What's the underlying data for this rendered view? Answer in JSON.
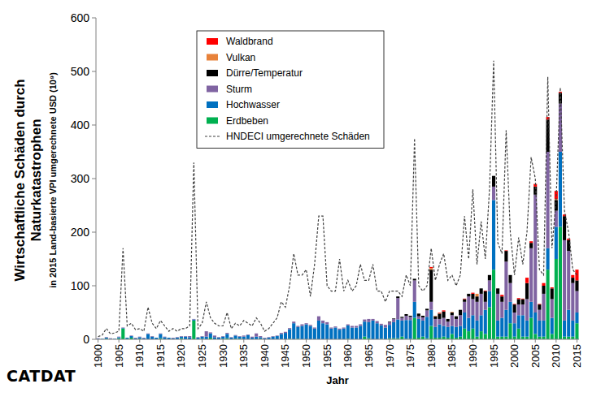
{
  "chart_data": {
    "type": "bar",
    "stacked": true,
    "y_label": [
      "Wirtschaftliche Schäden durch",
      "Naturkatastrophen",
      "in 2015 Land-basierte VPI umgerechnete USD (10⁹)"
    ],
    "x_label": "Jahr",
    "logo": "CATDAT",
    "legend": "top-left",
    "grid": false,
    "x": [
      1900,
      1901,
      1902,
      1903,
      1904,
      1905,
      1906,
      1907,
      1908,
      1909,
      1910,
      1911,
      1912,
      1913,
      1914,
      1915,
      1916,
      1917,
      1918,
      1919,
      1920,
      1921,
      1922,
      1923,
      1924,
      1925,
      1926,
      1927,
      1928,
      1929,
      1930,
      1931,
      1932,
      1933,
      1934,
      1935,
      1936,
      1937,
      1938,
      1939,
      1940,
      1941,
      1942,
      1943,
      1944,
      1945,
      1946,
      1947,
      1948,
      1949,
      1950,
      1951,
      1952,
      1953,
      1954,
      1955,
      1956,
      1957,
      1958,
      1959,
      1960,
      1961,
      1962,
      1963,
      1964,
      1965,
      1966,
      1967,
      1968,
      1969,
      1970,
      1971,
      1972,
      1973,
      1974,
      1975,
      1976,
      1977,
      1978,
      1979,
      1980,
      1981,
      1982,
      1983,
      1984,
      1985,
      1986,
      1987,
      1988,
      1989,
      1990,
      1991,
      1992,
      1993,
      1994,
      1995,
      1996,
      1997,
      1998,
      1999,
      2000,
      2001,
      2002,
      2003,
      2004,
      2005,
      2006,
      2007,
      2008,
      2009,
      2010,
      2011,
      2012,
      2013,
      2014,
      2015
    ],
    "xlim": [
      1899.5,
      2015.5
    ],
    "xticks": [
      1900,
      1905,
      1910,
      1915,
      1920,
      1925,
      1930,
      1935,
      1940,
      1945,
      1950,
      1955,
      1960,
      1965,
      1970,
      1975,
      1980,
      1985,
      1990,
      1995,
      2000,
      2005,
      2010,
      2015
    ],
    "ylim": [
      0,
      600
    ],
    "yticks": [
      0,
      100,
      200,
      300,
      400,
      500,
      600
    ],
    "series": [
      {
        "name": "Erdbeben",
        "color": "#00b050",
        "values": [
          0,
          0,
          1,
          0,
          0,
          2,
          20,
          1,
          3,
          0,
          1,
          0,
          0,
          0,
          0,
          2,
          0,
          0,
          0,
          0,
          2,
          0,
          0,
          35,
          0,
          1,
          0,
          3,
          0,
          0,
          1,
          2,
          0,
          1,
          1,
          0,
          0,
          0,
          0,
          1,
          0,
          0,
          0,
          0,
          0,
          0,
          1,
          0,
          1,
          0,
          0,
          0,
          0,
          0,
          0,
          0,
          0,
          0,
          0,
          0,
          1,
          0,
          0,
          0,
          5,
          2,
          0,
          0,
          1,
          0,
          2,
          2,
          2,
          5,
          1,
          1,
          40,
          3,
          5,
          2,
          25,
          3,
          3,
          5,
          3,
          10,
          3,
          5,
          20,
          15,
          20,
          5,
          15,
          10,
          60,
          130,
          5,
          5,
          5,
          30,
          5,
          20,
          5,
          5,
          40,
          10,
          5,
          5,
          130,
          10,
          150,
          210,
          5,
          5,
          5,
          30
        ]
      },
      {
        "name": "Hochwasser",
        "color": "#0070c0",
        "values": [
          1,
          1,
          2,
          1,
          1,
          2,
          1,
          2,
          3,
          2,
          3,
          2,
          10,
          5,
          3,
          8,
          4,
          3,
          2,
          3,
          3,
          5,
          4,
          2,
          3,
          4,
          5,
          8,
          4,
          3,
          4,
          8,
          3,
          6,
          4,
          5,
          8,
          3,
          5,
          3,
          2,
          3,
          5,
          6,
          10,
          12,
          18,
          30,
          22,
          25,
          28,
          25,
          20,
          35,
          30,
          28,
          20,
          22,
          18,
          20,
          25,
          22,
          22,
          25,
          28,
          30,
          35,
          30,
          25,
          22,
          25,
          30,
          35,
          30,
          35,
          35,
          30,
          35,
          30,
          40,
          30,
          20,
          25,
          20,
          20,
          15,
          20,
          20,
          30,
          25,
          25,
          30,
          30,
          45,
          30,
          130,
          30,
          35,
          50,
          40,
          25,
          25,
          40,
          30,
          30,
          40,
          30,
          30,
          40,
          30,
          60,
          140,
          30,
          50,
          30,
          20
        ]
      },
      {
        "name": "Sturm",
        "color": "#8064a2",
        "values": [
          1,
          0,
          1,
          1,
          0,
          1,
          1,
          0,
          1,
          1,
          1,
          1,
          1,
          1,
          0,
          1,
          1,
          0,
          1,
          1,
          1,
          1,
          2,
          1,
          1,
          1,
          10,
          2,
          3,
          1,
          1,
          2,
          1,
          1,
          1,
          2,
          1,
          2,
          6,
          2,
          1,
          1,
          1,
          1,
          2,
          2,
          2,
          3,
          2,
          3,
          2,
          2,
          2,
          8,
          5,
          4,
          2,
          2,
          2,
          2,
          2,
          3,
          3,
          3,
          4,
          6,
          3,
          4,
          3,
          5,
          5,
          6,
          40,
          5,
          8,
          6,
          40,
          5,
          6,
          12,
          15,
          15,
          10,
          15,
          10,
          20,
          15,
          20,
          20,
          40,
          30,
          35,
          40,
          15,
          20,
          25,
          50,
          30,
          90,
          35,
          20,
          20,
          20,
          40,
          100,
          220,
          20,
          50,
          180,
          35,
          30,
          90,
          150,
          110,
          70,
          40
        ]
      },
      {
        "name": "Dürre/Temperatur",
        "color": "#000000",
        "values": [
          0,
          0,
          0,
          0,
          0,
          0,
          0,
          0,
          0,
          0,
          0,
          0,
          0,
          0,
          0,
          0,
          0,
          0,
          0,
          0,
          0,
          0,
          0,
          0,
          0,
          0,
          0,
          0,
          0,
          0,
          0,
          0,
          0,
          0,
          0,
          0,
          0,
          0,
          0,
          0,
          0,
          0,
          0,
          0,
          0,
          0,
          0,
          0,
          0,
          0,
          0,
          0,
          0,
          0,
          0,
          0,
          0,
          0,
          0,
          0,
          0,
          0,
          0,
          0,
          0,
          0,
          0,
          0,
          0,
          0,
          1,
          1,
          3,
          2,
          3,
          2,
          3,
          5,
          3,
          3,
          60,
          5,
          10,
          12,
          5,
          5,
          5,
          10,
          5,
          5,
          10,
          10,
          10,
          20,
          10,
          20,
          10,
          10,
          20,
          15,
          15,
          10,
          10,
          30,
          10,
          15,
          10,
          15,
          60,
          20,
          20,
          20,
          45,
          20,
          10,
          20
        ]
      },
      {
        "name": "Vulkan",
        "color": "#e8823a",
        "values": [
          0,
          0,
          0,
          0,
          0,
          0,
          0,
          0,
          0,
          0,
          0,
          0,
          0,
          0,
          0,
          0,
          0,
          0,
          0,
          0,
          0,
          0,
          0,
          0,
          0,
          0,
          0,
          0,
          0,
          0,
          0,
          0,
          0,
          0,
          0,
          0,
          0,
          0,
          0,
          0,
          0,
          0,
          0,
          0,
          0,
          0,
          0,
          0,
          0,
          0,
          0,
          0,
          0,
          0,
          0,
          0,
          0,
          0,
          0,
          0,
          0,
          0,
          0,
          0,
          0,
          0,
          0,
          0,
          0,
          0,
          0,
          0,
          0,
          0,
          0,
          0,
          0,
          0,
          0,
          0,
          3,
          1,
          1,
          0,
          0,
          1,
          0,
          0,
          0,
          0,
          0,
          5,
          0,
          0,
          0,
          0,
          0,
          0,
          0,
          0,
          0,
          0,
          0,
          0,
          0,
          0,
          0,
          0,
          0,
          0,
          2,
          0,
          0,
          0,
          0,
          0
        ]
      },
      {
        "name": "Waldbrand",
        "color": "#ff0000",
        "values": [
          0,
          0,
          0,
          0,
          0,
          0,
          0,
          0,
          0,
          0,
          0,
          0,
          0,
          0,
          0,
          0,
          0,
          0,
          0,
          0,
          0,
          0,
          0,
          0,
          0,
          0,
          0,
          0,
          0,
          0,
          0,
          0,
          0,
          0,
          0,
          0,
          0,
          0,
          0,
          0,
          0,
          0,
          0,
          0,
          0,
          0,
          0,
          0,
          0,
          0,
          0,
          0,
          0,
          0,
          0,
          0,
          0,
          0,
          0,
          0,
          0,
          0,
          0,
          0,
          0,
          0,
          0,
          0,
          0,
          0,
          0,
          0,
          0,
          0,
          0,
          0,
          0,
          0,
          0,
          0,
          2,
          0,
          1,
          2,
          0,
          0,
          0,
          0,
          1,
          0,
          2,
          0,
          0,
          1,
          0,
          0,
          0,
          3,
          1,
          0,
          1,
          2,
          1,
          10,
          3,
          5,
          1,
          5,
          5,
          2,
          15,
          2,
          3,
          3,
          5,
          20
        ]
      },
      {
        "name": "HNDECI umgerechnete Schäden",
        "type": "line",
        "line_style": "dashed",
        "color": "#404040",
        "values": [
          5,
          8,
          20,
          10,
          12,
          15,
          170,
          25,
          30,
          18,
          20,
          15,
          60,
          30,
          20,
          35,
          25,
          15,
          20,
          15,
          20,
          20,
          25,
          330,
          20,
          30,
          70,
          40,
          30,
          25,
          25,
          50,
          20,
          30,
          25,
          35,
          30,
          25,
          40,
          30,
          15,
          20,
          30,
          40,
          70,
          60,
          100,
          160,
          120,
          120,
          130,
          80,
          140,
          230,
          230,
          100,
          90,
          90,
          150,
          90,
          110,
          90,
          100,
          140,
          110,
          110,
          140,
          90,
          90,
          70,
          90,
          90,
          90,
          80,
          120,
          100,
          375,
          100,
          90,
          100,
          170,
          110,
          140,
          160,
          110,
          120,
          100,
          120,
          230,
          150,
          280,
          140,
          220,
          150,
          280,
          520,
          180,
          160,
          390,
          200,
          120,
          190,
          140,
          200,
          340,
          300,
          130,
          120,
          490,
          170,
          260,
          470,
          240,
          200,
          130,
          120
        ]
      }
    ]
  }
}
